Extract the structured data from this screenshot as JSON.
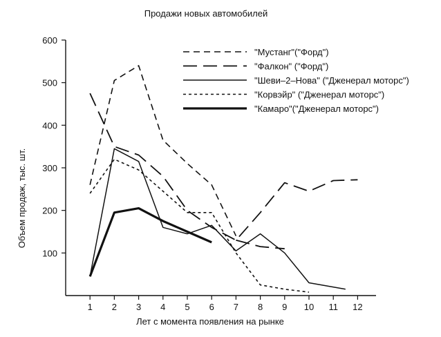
{
  "chart_data": {
    "type": "line",
    "title": "Продажи новых автомобилей",
    "xlabel": "Лет с момента появления на рынке",
    "ylabel": "Объем продаж, тыс. шт.",
    "xlim": [
      0,
      13
    ],
    "ylim": [
      0,
      600
    ],
    "xticks": [
      1,
      2,
      3,
      4,
      5,
      6,
      7,
      8,
      9,
      10,
      11,
      12
    ],
    "yticks": [
      100,
      200,
      300,
      400,
      500,
      600
    ],
    "grid": false,
    "legend_position": "top-right",
    "series": [
      {
        "name": "\"Мустанг\"(\"Форд\")",
        "style": "dash-short",
        "x": [
          1,
          2,
          3,
          4,
          5,
          6,
          7
        ],
        "y": [
          260,
          505,
          540,
          365,
          310,
          260,
          140
        ]
      },
      {
        "name": "\"Фалкон\" (\"Форд\")",
        "style": "dash-long",
        "x": [
          1,
          2,
          3,
          4,
          5,
          6,
          7,
          8,
          9,
          10,
          11,
          12
        ],
        "y": [
          475,
          350,
          330,
          280,
          200,
          160,
          130,
          195,
          265,
          245,
          270,
          272
        ]
      },
      {
        "name": "\"Шеви–2–Нова\" (\"Дженерал моторс\")",
        "style": "solid-thin",
        "x": [
          1,
          2,
          3,
          4,
          5,
          6,
          7,
          8,
          9,
          10,
          11.5
        ],
        "y": [
          45,
          345,
          315,
          160,
          145,
          165,
          105,
          145,
          100,
          30,
          15
        ]
      },
      {
        "name": "\"Корвэйр\" (\"Дженерал моторс\")",
        "style": "dotted",
        "x": [
          1,
          2,
          3,
          4,
          5,
          6,
          7,
          8,
          9,
          10
        ],
        "y": [
          240,
          320,
          295,
          245,
          195,
          195,
          100,
          25,
          15,
          8
        ]
      },
      {
        "name": "\"Камаро\"(\"Дженерал моторс\")",
        "style": "solid-thick",
        "x": [
          1,
          2,
          3,
          4,
          5,
          6
        ],
        "y": [
          45,
          195,
          205,
          175,
          150,
          125
        ]
      },
      {
        "name": "",
        "style": "dash-long",
        "x": [
          7,
          8,
          9
        ],
        "y": [
          130,
          115,
          110
        ]
      }
    ]
  }
}
